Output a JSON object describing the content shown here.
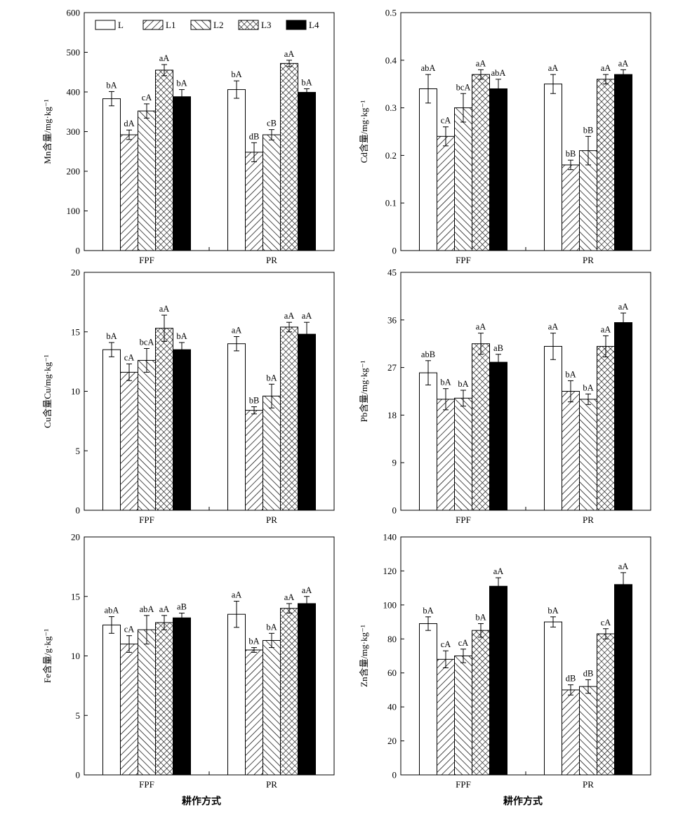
{
  "figure": {
    "bottom_labels": [
      "耕作方式",
      "耕作方式"
    ]
  },
  "legend": [
    "L",
    "L1",
    "L2",
    "L3",
    "L4"
  ],
  "chart_data": [
    {
      "type": "bar",
      "ylabel": "Mn含量/mg·kg⁻¹",
      "ylim": [
        0,
        600
      ],
      "yticks": [
        0,
        100,
        200,
        300,
        400,
        500,
        600
      ],
      "categories": [
        "FPF",
        "PR"
      ],
      "series": [
        {
          "name": "L",
          "values": [
            383,
            406
          ],
          "errors": [
            18,
            22
          ],
          "labels": [
            "bA",
            "bA"
          ]
        },
        {
          "name": "L1",
          "values": [
            292,
            248
          ],
          "errors": [
            12,
            24
          ],
          "labels": [
            "dA",
            "dB"
          ]
        },
        {
          "name": "L2",
          "values": [
            352,
            292
          ],
          "errors": [
            18,
            13
          ],
          "labels": [
            "cA",
            "cB"
          ]
        },
        {
          "name": "L3",
          "values": [
            455,
            472
          ],
          "errors": [
            14,
            8
          ],
          "labels": [
            "aA",
            "aA"
          ]
        },
        {
          "name": "L4",
          "values": [
            388,
            399
          ],
          "errors": [
            18,
            9
          ],
          "labels": [
            "bA",
            "bA"
          ]
        }
      ],
      "legend": "top-left"
    },
    {
      "type": "bar",
      "ylabel": "Cd含量/mg·kg⁻¹",
      "ylim": [
        0,
        0.5
      ],
      "yticks": [
        0,
        0.1,
        0.2,
        0.3,
        0.4,
        0.5
      ],
      "categories": [
        "FPF",
        "PR"
      ],
      "series": [
        {
          "name": "L",
          "values": [
            0.34,
            0.35
          ],
          "errors": [
            0.03,
            0.02
          ],
          "labels": [
            "abA",
            "aA"
          ]
        },
        {
          "name": "L1",
          "values": [
            0.24,
            0.18
          ],
          "errors": [
            0.02,
            0.01
          ],
          "labels": [
            "cA",
            "bB"
          ]
        },
        {
          "name": "L2",
          "values": [
            0.3,
            0.21
          ],
          "errors": [
            0.03,
            0.03
          ],
          "labels": [
            "bcA",
            "bB"
          ]
        },
        {
          "name": "L3",
          "values": [
            0.37,
            0.36
          ],
          "errors": [
            0.01,
            0.01
          ],
          "labels": [
            "aA",
            "aA"
          ]
        },
        {
          "name": "L4",
          "values": [
            0.34,
            0.37
          ],
          "errors": [
            0.02,
            0.01
          ],
          "labels": [
            "abA",
            "aA"
          ]
        }
      ]
    },
    {
      "type": "bar",
      "ylabel": "Cu含量Cu/mg·kg⁻¹",
      "ylim": [
        0,
        20
      ],
      "yticks": [
        0,
        5,
        10,
        15,
        20
      ],
      "categories": [
        "FPF",
        "PR"
      ],
      "series": [
        {
          "name": "L",
          "values": [
            13.5,
            14.0
          ],
          "errors": [
            0.6,
            0.6
          ],
          "labels": [
            "bA",
            "aA"
          ]
        },
        {
          "name": "L1",
          "values": [
            11.6,
            8.4
          ],
          "errors": [
            0.7,
            0.3
          ],
          "labels": [
            "cA",
            "bB"
          ]
        },
        {
          "name": "L2",
          "values": [
            12.6,
            9.6
          ],
          "errors": [
            1.0,
            1.0
          ],
          "labels": [
            "bcA",
            "bA"
          ]
        },
        {
          "name": "L3",
          "values": [
            15.3,
            15.4
          ],
          "errors": [
            1.1,
            0.4
          ],
          "labels": [
            "aA",
            "aA"
          ]
        },
        {
          "name": "L4",
          "values": [
            13.5,
            14.8
          ],
          "errors": [
            0.6,
            1.0
          ],
          "labels": [
            "bA",
            "aA"
          ]
        }
      ]
    },
    {
      "type": "bar",
      "ylabel": "Pb含量/mg·kg⁻¹",
      "ylim": [
        0,
        45
      ],
      "yticks": [
        0,
        9,
        18,
        27,
        36,
        45
      ],
      "categories": [
        "FPF",
        "PR"
      ],
      "series": [
        {
          "name": "L",
          "values": [
            26.0,
            31.0
          ],
          "errors": [
            2.3,
            2.5
          ],
          "labels": [
            "abB",
            "aA"
          ]
        },
        {
          "name": "L1",
          "values": [
            21.0,
            22.5
          ],
          "errors": [
            2.0,
            2.0
          ],
          "labels": [
            "bA",
            "bA"
          ]
        },
        {
          "name": "L2",
          "values": [
            21.2,
            21.0
          ],
          "errors": [
            1.5,
            1.0
          ],
          "labels": [
            "bA",
            "bA"
          ]
        },
        {
          "name": "L3",
          "values": [
            31.5,
            31.0
          ],
          "errors": [
            2.0,
            2.0
          ],
          "labels": [
            "aA",
            "aA"
          ]
        },
        {
          "name": "L4",
          "values": [
            28.0,
            35.5
          ],
          "errors": [
            1.5,
            1.8
          ],
          "labels": [
            "aB",
            "aA"
          ]
        }
      ]
    },
    {
      "type": "bar",
      "ylabel": "Fe含量/g·kg⁻¹",
      "ylim": [
        0,
        20
      ],
      "yticks": [
        0,
        5,
        10,
        15,
        20
      ],
      "categories": [
        "FPF",
        "PR"
      ],
      "series": [
        {
          "name": "L",
          "values": [
            12.6,
            13.5
          ],
          "errors": [
            0.7,
            1.1
          ],
          "labels": [
            "abA",
            "aA"
          ]
        },
        {
          "name": "L1",
          "values": [
            11.0,
            10.5
          ],
          "errors": [
            0.7,
            0.2
          ],
          "labels": [
            "cA",
            "bA"
          ]
        },
        {
          "name": "L2",
          "values": [
            12.2,
            11.3
          ],
          "errors": [
            1.2,
            0.6
          ],
          "labels": [
            "abA",
            "bA"
          ]
        },
        {
          "name": "L3",
          "values": [
            12.8,
            14.0
          ],
          "errors": [
            0.6,
            0.4
          ],
          "labels": [
            "aA",
            "aA"
          ]
        },
        {
          "name": "L4",
          "values": [
            13.2,
            14.4
          ],
          "errors": [
            0.4,
            0.6
          ],
          "labels": [
            "aB",
            "aA"
          ]
        }
      ]
    },
    {
      "type": "bar",
      "ylabel": "Zn含量/mg·kg⁻¹",
      "ylim": [
        0,
        140
      ],
      "yticks": [
        0,
        20,
        40,
        60,
        80,
        100,
        120,
        140
      ],
      "categories": [
        "FPF",
        "PR"
      ],
      "series": [
        {
          "name": "L",
          "values": [
            89,
            90
          ],
          "errors": [
            4,
            3
          ],
          "labels": [
            "bA",
            "bA"
          ]
        },
        {
          "name": "L1",
          "values": [
            68,
            50
          ],
          "errors": [
            5,
            3
          ],
          "labels": [
            "cA",
            "dB"
          ]
        },
        {
          "name": "L2",
          "values": [
            70,
            52
          ],
          "errors": [
            4,
            4
          ],
          "labels": [
            "cA",
            "dB"
          ]
        },
        {
          "name": "L3",
          "values": [
            85,
            83
          ],
          "errors": [
            4,
            3
          ],
          "labels": [
            "bA",
            "cA"
          ]
        },
        {
          "name": "L4",
          "values": [
            111,
            112
          ],
          "errors": [
            5,
            7
          ],
          "labels": [
            "aA",
            "aA"
          ]
        }
      ]
    }
  ]
}
